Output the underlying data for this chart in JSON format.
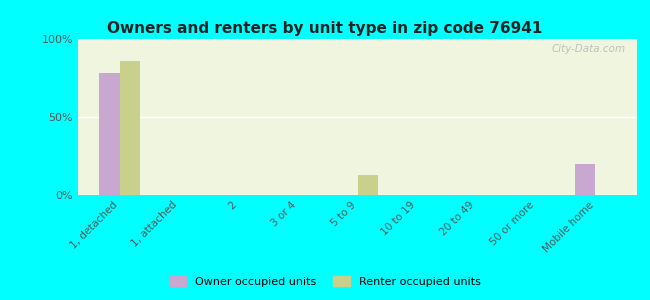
{
  "title": "Owners and renters by unit type in zip code 76941",
  "categories": [
    "1, detached",
    "1, attached",
    "2",
    "3 or 4",
    "5 to 9",
    "10 to 19",
    "20 to 49",
    "50 or more",
    "Mobile home"
  ],
  "owner_values": [
    78,
    0,
    0,
    0,
    0,
    0,
    0,
    0,
    20
  ],
  "renter_values": [
    86,
    0,
    0,
    0,
    13,
    0,
    0,
    0,
    0
  ],
  "owner_color": "#c8a8d0",
  "renter_color": "#c8d08c",
  "background_outer": "#00ffff",
  "background_inner_top": "#f0f5e0",
  "background_inner_bottom": "#e8f5e8",
  "ylim": [
    0,
    100
  ],
  "yticks": [
    0,
    50,
    100
  ],
  "ytick_labels": [
    "0%",
    "50%",
    "100%"
  ],
  "bar_width": 0.35,
  "legend_owner": "Owner occupied units",
  "legend_renter": "Renter occupied units",
  "watermark": "City-Data.com"
}
